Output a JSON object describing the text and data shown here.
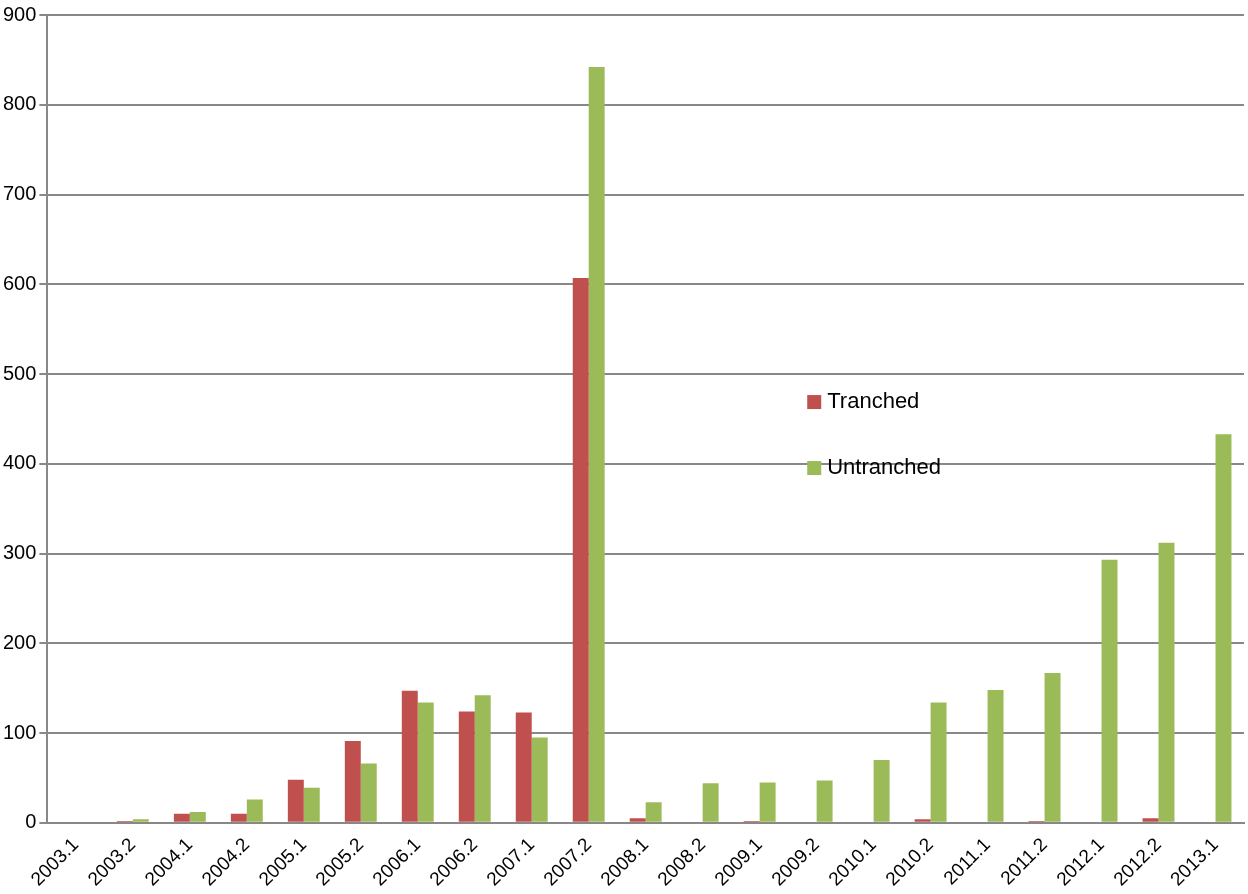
{
  "chart_data": {
    "type": "bar",
    "categories": [
      "2003.1",
      "2003.2",
      "2004.1",
      "2004.2",
      "2005.1",
      "2005.2",
      "2006.1",
      "2006.2",
      "2007.1",
      "2007.2",
      "2008.1",
      "2008.2",
      "2009.1",
      "2009.2",
      "2010.1",
      "2010.2",
      "2011.1",
      "2011.2",
      "2012.1",
      "2012.2",
      "2013.1"
    ],
    "series": [
      {
        "name": "Tranched",
        "color": "#c0504d",
        "values": [
          0,
          2,
          10,
          10,
          48,
          91,
          147,
          124,
          123,
          607,
          5,
          0,
          2,
          0,
          0,
          4,
          0,
          2,
          0,
          5,
          0
        ]
      },
      {
        "name": "Untranched",
        "color": "#9bbb59",
        "values": [
          0,
          4,
          12,
          26,
          39,
          66,
          134,
          142,
          95,
          842,
          23,
          44,
          45,
          47,
          70,
          134,
          148,
          167,
          293,
          312,
          433
        ]
      }
    ],
    "ylim": [
      0,
      900
    ],
    "yticks": [
      0,
      100,
      200,
      300,
      400,
      500,
      600,
      700,
      800,
      900
    ],
    "grid": "y",
    "legend": "right"
  }
}
